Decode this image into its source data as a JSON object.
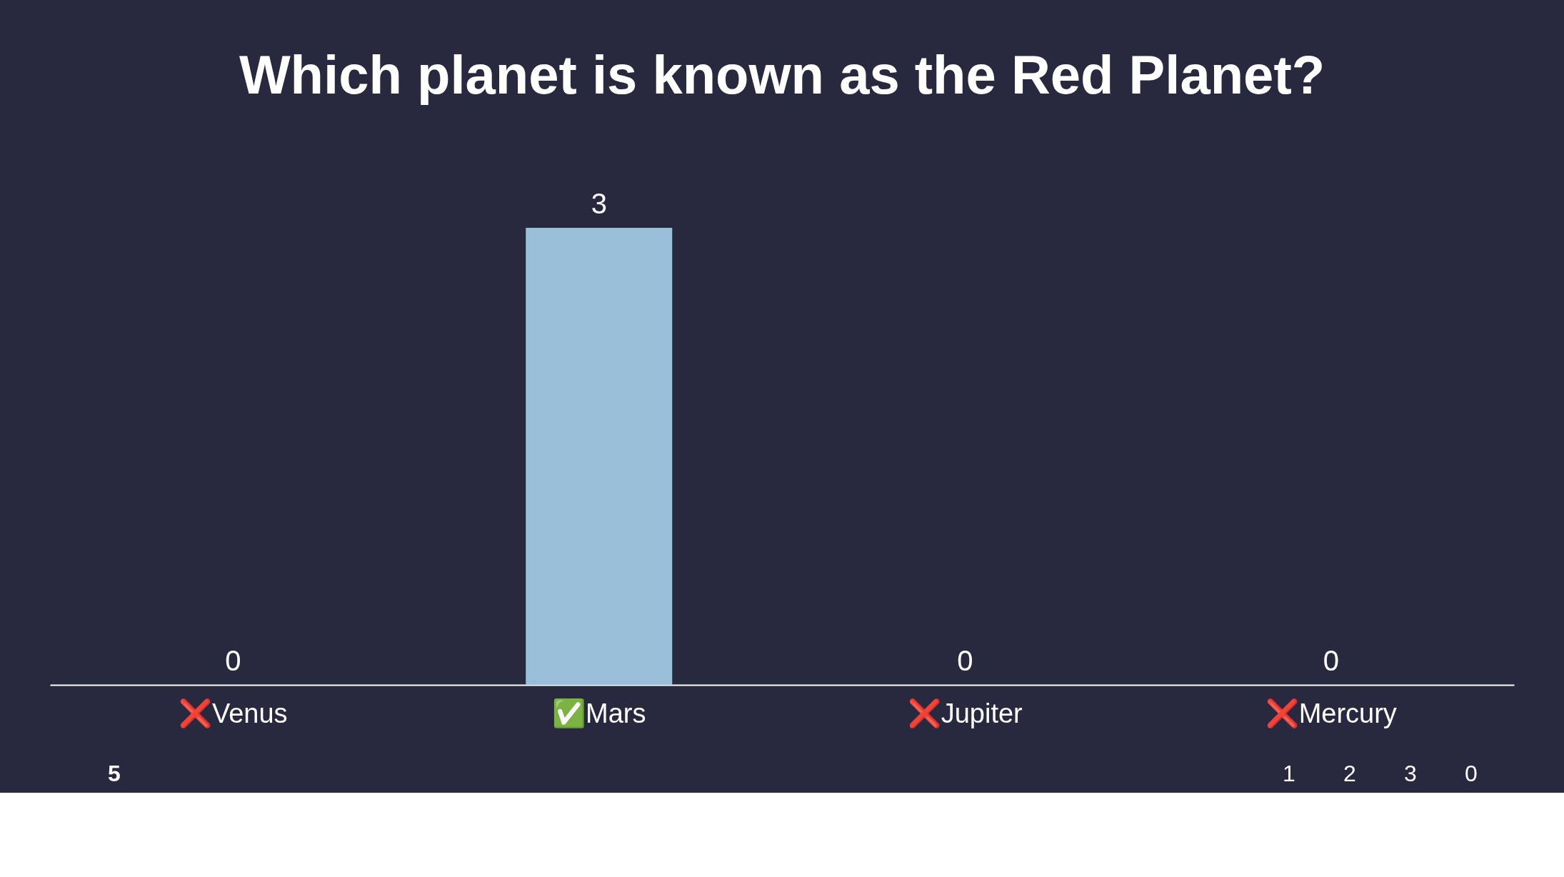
{
  "chart_data": {
    "type": "bar",
    "title": "Which planet is known as the Red Planet?",
    "categories": [
      "❌Venus",
      "✅Mars",
      "❌Jupiter",
      "❌Mercury"
    ],
    "values": [
      0,
      3,
      0,
      0
    ],
    "color": "#9ac0d9",
    "data_labels": true,
    "grid": false,
    "annotations": [
      "5",
      "1",
      "2",
      "3",
      "0"
    ]
  }
}
